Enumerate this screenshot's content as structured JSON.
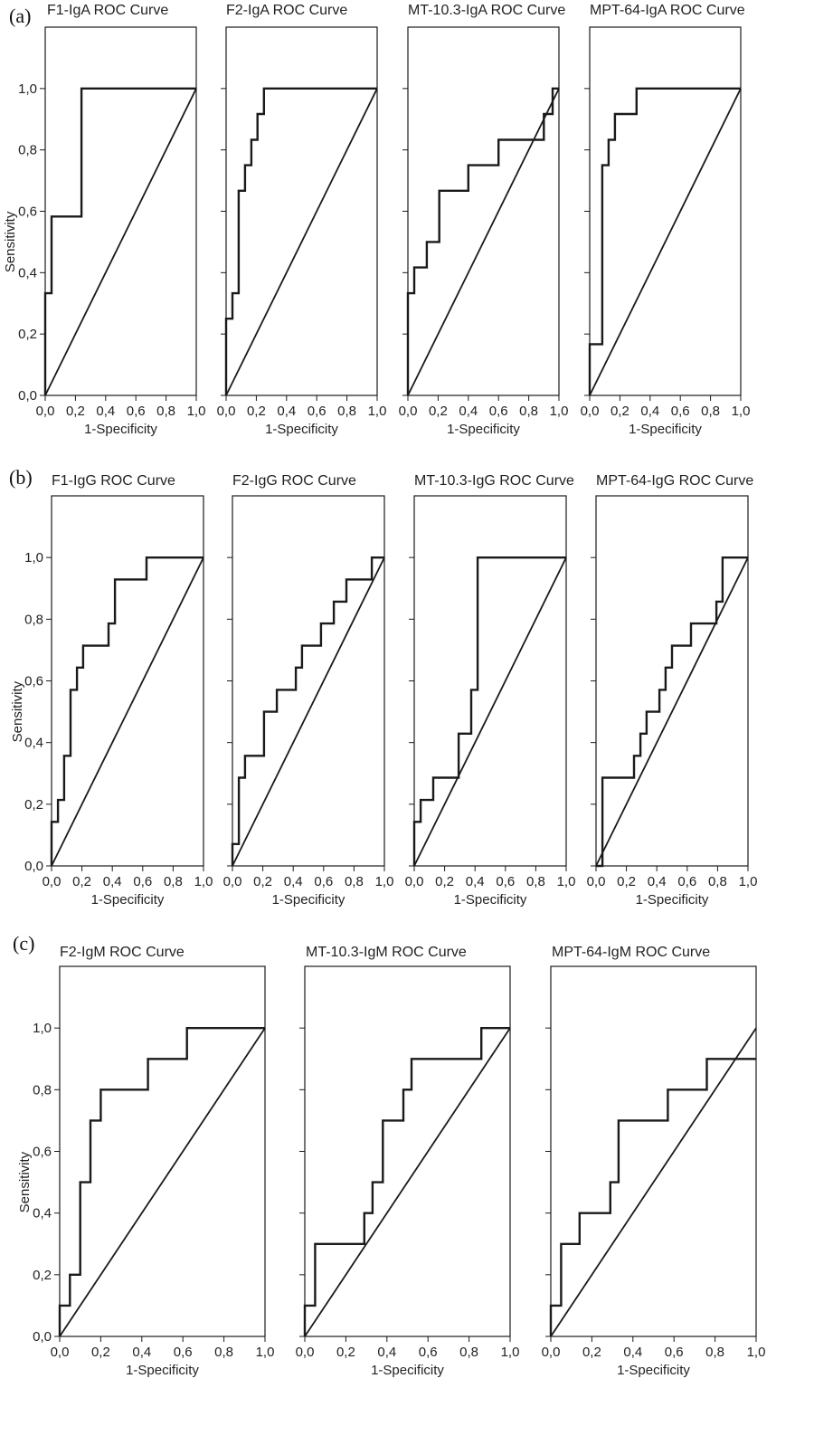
{
  "figure": {
    "panel_labels": [
      "(a)",
      "(b)",
      "(c)"
    ],
    "line_color": "#1a1a1a",
    "background": "#ffffff"
  },
  "chart_data": [
    {
      "type": "line",
      "panel": "(a)",
      "title": "F1-IgA ROC Curve",
      "xlabel": "1-Specificity",
      "ylabel": "Sensitivity",
      "xlim": [
        0,
        1
      ],
      "ylim": [
        0,
        1.2
      ],
      "xticks": [
        "0,0",
        "0,2",
        "0,4",
        "0,6",
        "0,8",
        "1,0"
      ],
      "yticks": [
        "0,0",
        "0,2",
        "0,4",
        "0,6",
        "0,8",
        "1,0"
      ],
      "series": [
        {
          "name": "ROC",
          "points": [
            [
              0,
              0
            ],
            [
              0,
              0.333
            ],
            [
              0.042,
              0.333
            ],
            [
              0.042,
              0.583
            ],
            [
              0.24,
              0.583
            ],
            [
              0.24,
              1.0
            ],
            [
              1.0,
              1.0
            ]
          ]
        },
        {
          "name": "Reference",
          "points": [
            [
              0,
              0
            ],
            [
              1,
              1
            ]
          ]
        }
      ]
    },
    {
      "type": "line",
      "panel": "(a)",
      "title": "F2-IgA ROC Curve",
      "xlabel": "1-Specificity",
      "ylabel": "",
      "xlim": [
        0,
        1
      ],
      "ylim": [
        0,
        1.2
      ],
      "xticks": [
        "0,0",
        "0,2",
        "0,4",
        "0,6",
        "0,8",
        "1,0"
      ],
      "yticks": [],
      "series": [
        {
          "name": "ROC",
          "points": [
            [
              0,
              0
            ],
            [
              0,
              0.25
            ],
            [
              0.042,
              0.25
            ],
            [
              0.042,
              0.333
            ],
            [
              0.083,
              0.333
            ],
            [
              0.083,
              0.667
            ],
            [
              0.125,
              0.667
            ],
            [
              0.125,
              0.75
            ],
            [
              0.167,
              0.75
            ],
            [
              0.167,
              0.833
            ],
            [
              0.208,
              0.833
            ],
            [
              0.208,
              0.917
            ],
            [
              0.25,
              0.917
            ],
            [
              0.25,
              1.0
            ],
            [
              1.0,
              1.0
            ]
          ]
        },
        {
          "name": "Reference",
          "points": [
            [
              0,
              0
            ],
            [
              1,
              1
            ]
          ]
        }
      ]
    },
    {
      "type": "line",
      "panel": "(a)",
      "title": "MT-10.3-IgA ROC Curve",
      "xlabel": "1-Specificity",
      "ylabel": "",
      "xlim": [
        0,
        1
      ],
      "ylim": [
        0,
        1.2
      ],
      "xticks": [
        "0,0",
        "0,2",
        "0,4",
        "0,6",
        "0,8",
        "1,0"
      ],
      "yticks": [],
      "series": [
        {
          "name": "ROC",
          "points": [
            [
              0,
              0
            ],
            [
              0,
              0.333
            ],
            [
              0.042,
              0.333
            ],
            [
              0.042,
              0.417
            ],
            [
              0.125,
              0.417
            ],
            [
              0.125,
              0.5
            ],
            [
              0.208,
              0.5
            ],
            [
              0.208,
              0.667
            ],
            [
              0.4,
              0.667
            ],
            [
              0.4,
              0.75
            ],
            [
              0.6,
              0.75
            ],
            [
              0.6,
              0.833
            ],
            [
              0.9,
              0.833
            ],
            [
              0.9,
              0.917
            ],
            [
              0.958,
              0.917
            ],
            [
              0.958,
              1.0
            ],
            [
              1.0,
              1.0
            ]
          ]
        },
        {
          "name": "Reference",
          "points": [
            [
              0,
              0
            ],
            [
              1,
              1
            ]
          ]
        }
      ]
    },
    {
      "type": "line",
      "panel": "(a)",
      "title": "MPT-64-IgA ROC Curve",
      "xlabel": "1-Specificity",
      "ylabel": "",
      "xlim": [
        0,
        1
      ],
      "ylim": [
        0,
        1.2
      ],
      "xticks": [
        "0,0",
        "0,2",
        "0,4",
        "0,6",
        "0,8",
        "1,0"
      ],
      "yticks": [],
      "series": [
        {
          "name": "ROC",
          "points": [
            [
              0,
              0
            ],
            [
              0,
              0.167
            ],
            [
              0.083,
              0.167
            ],
            [
              0.083,
              0.75
            ],
            [
              0.125,
              0.75
            ],
            [
              0.125,
              0.833
            ],
            [
              0.167,
              0.833
            ],
            [
              0.167,
              0.917
            ],
            [
              0.31,
              0.917
            ],
            [
              0.31,
              1.0
            ],
            [
              1.0,
              1.0
            ]
          ]
        },
        {
          "name": "Reference",
          "points": [
            [
              0,
              0
            ],
            [
              1,
              1
            ]
          ]
        }
      ]
    },
    {
      "type": "line",
      "panel": "(b)",
      "title": "F1-IgG ROC Curve",
      "xlabel": "1-Specificity",
      "ylabel": "Sensitivity",
      "xlim": [
        0,
        1
      ],
      "ylim": [
        0,
        1.2
      ],
      "xticks": [
        "0,0",
        "0,2",
        "0,4",
        "0,6",
        "0,8",
        "1,0"
      ],
      "yticks": [
        "0,0",
        "0,2",
        "0,4",
        "0,6",
        "0,8",
        "1,0"
      ],
      "series": [
        {
          "name": "ROC",
          "points": [
            [
              0,
              0
            ],
            [
              0,
              0.143
            ],
            [
              0.042,
              0.143
            ],
            [
              0.042,
              0.214
            ],
            [
              0.083,
              0.214
            ],
            [
              0.083,
              0.357
            ],
            [
              0.125,
              0.357
            ],
            [
              0.125,
              0.571
            ],
            [
              0.167,
              0.571
            ],
            [
              0.167,
              0.643
            ],
            [
              0.208,
              0.643
            ],
            [
              0.208,
              0.714
            ],
            [
              0.375,
              0.714
            ],
            [
              0.375,
              0.786
            ],
            [
              0.417,
              0.786
            ],
            [
              0.417,
              0.929
            ],
            [
              0.625,
              0.929
            ],
            [
              0.625,
              1.0
            ],
            [
              1.0,
              1.0
            ]
          ]
        },
        {
          "name": "Reference",
          "points": [
            [
              0,
              0
            ],
            [
              1,
              1
            ]
          ]
        }
      ]
    },
    {
      "type": "line",
      "panel": "(b)",
      "title": "F2-IgG ROC Curve",
      "xlabel": "1-Specificity",
      "ylabel": "",
      "xlim": [
        0,
        1
      ],
      "ylim": [
        0,
        1.2
      ],
      "xticks": [
        "0,0",
        "0,2",
        "0,4",
        "0,6",
        "0,8",
        "1,0"
      ],
      "yticks": [],
      "series": [
        {
          "name": "ROC",
          "points": [
            [
              0,
              0
            ],
            [
              0,
              0.071
            ],
            [
              0.042,
              0.071
            ],
            [
              0.042,
              0.286
            ],
            [
              0.083,
              0.286
            ],
            [
              0.083,
              0.357
            ],
            [
              0.208,
              0.357
            ],
            [
              0.208,
              0.5
            ],
            [
              0.292,
              0.5
            ],
            [
              0.292,
              0.571
            ],
            [
              0.417,
              0.571
            ],
            [
              0.417,
              0.643
            ],
            [
              0.458,
              0.643
            ],
            [
              0.458,
              0.714
            ],
            [
              0.583,
              0.714
            ],
            [
              0.583,
              0.786
            ],
            [
              0.667,
              0.786
            ],
            [
              0.667,
              0.857
            ],
            [
              0.75,
              0.857
            ],
            [
              0.75,
              0.929
            ],
            [
              0.917,
              0.929
            ],
            [
              0.917,
              1.0
            ],
            [
              1.0,
              1.0
            ]
          ]
        },
        {
          "name": "Reference",
          "points": [
            [
              0,
              0
            ],
            [
              1,
              1
            ]
          ]
        }
      ]
    },
    {
      "type": "line",
      "panel": "(b)",
      "title": "MT-10.3-IgG ROC Curve",
      "xlabel": "1-Specificity",
      "ylabel": "",
      "xlim": [
        0,
        1
      ],
      "ylim": [
        0,
        1.2
      ],
      "xticks": [
        "0,0",
        "0,2",
        "0,4",
        "0,6",
        "0,8",
        "1,0"
      ],
      "yticks": [],
      "series": [
        {
          "name": "ROC",
          "points": [
            [
              0,
              0
            ],
            [
              0,
              0.143
            ],
            [
              0.042,
              0.143
            ],
            [
              0.042,
              0.214
            ],
            [
              0.125,
              0.214
            ],
            [
              0.125,
              0.286
            ],
            [
              0.292,
              0.286
            ],
            [
              0.292,
              0.429
            ],
            [
              0.375,
              0.429
            ],
            [
              0.375,
              0.571
            ],
            [
              0.417,
              0.571
            ],
            [
              0.417,
              1.0
            ],
            [
              1.0,
              1.0
            ]
          ]
        },
        {
          "name": "Reference",
          "points": [
            [
              0,
              0
            ],
            [
              1,
              1
            ]
          ]
        }
      ]
    },
    {
      "type": "line",
      "panel": "(b)",
      "title": "MPT-64-IgG ROC Curve",
      "xlabel": "1-Specificity",
      "ylabel": "",
      "xlim": [
        0,
        1
      ],
      "ylim": [
        0,
        1.2
      ],
      "xticks": [
        "0,0",
        "0,2",
        "0,4",
        "0,6",
        "0,8",
        "1,0"
      ],
      "yticks": [],
      "series": [
        {
          "name": "ROC",
          "points": [
            [
              0,
              0
            ],
            [
              0.042,
              0
            ],
            [
              0.042,
              0.286
            ],
            [
              0.25,
              0.286
            ],
            [
              0.25,
              0.357
            ],
            [
              0.292,
              0.357
            ],
            [
              0.292,
              0.429
            ],
            [
              0.333,
              0.429
            ],
            [
              0.333,
              0.5
            ],
            [
              0.417,
              0.5
            ],
            [
              0.417,
              0.571
            ],
            [
              0.458,
              0.571
            ],
            [
              0.458,
              0.643
            ],
            [
              0.5,
              0.643
            ],
            [
              0.5,
              0.714
            ],
            [
              0.625,
              0.714
            ],
            [
              0.625,
              0.786
            ],
            [
              0.792,
              0.786
            ],
            [
              0.792,
              0.857
            ],
            [
              0.833,
              0.857
            ],
            [
              0.833,
              1.0
            ],
            [
              1.0,
              1.0
            ]
          ]
        },
        {
          "name": "Reference",
          "points": [
            [
              0,
              0
            ],
            [
              1,
              1
            ]
          ]
        }
      ]
    },
    {
      "type": "line",
      "panel": "(c)",
      "title": "F2-IgM ROC Curve",
      "xlabel": "1-Specificity",
      "ylabel": "Sensitivity",
      "xlim": [
        0,
        1
      ],
      "ylim": [
        0,
        1.2
      ],
      "xticks": [
        "0,0",
        "0,2",
        "0,4",
        "0,6",
        "0,8",
        "1,0"
      ],
      "yticks": [
        "0,0",
        "0,2",
        "0,4",
        "0,6",
        "0,8",
        "1,0"
      ],
      "series": [
        {
          "name": "ROC",
          "points": [
            [
              0,
              0
            ],
            [
              0,
              0.1
            ],
            [
              0.05,
              0.1
            ],
            [
              0.05,
              0.2
            ],
            [
              0.1,
              0.2
            ],
            [
              0.1,
              0.5
            ],
            [
              0.15,
              0.5
            ],
            [
              0.15,
              0.7
            ],
            [
              0.2,
              0.7
            ],
            [
              0.2,
              0.8
            ],
            [
              0.43,
              0.8
            ],
            [
              0.43,
              0.9
            ],
            [
              0.62,
              0.9
            ],
            [
              0.62,
              1.0
            ],
            [
              1.0,
              1.0
            ]
          ]
        },
        {
          "name": "Reference",
          "points": [
            [
              0,
              0
            ],
            [
              1,
              1
            ]
          ]
        }
      ]
    },
    {
      "type": "line",
      "panel": "(c)",
      "title": "MT-10.3-IgM ROC Curve",
      "xlabel": "1-Specificity",
      "ylabel": "",
      "xlim": [
        0,
        1
      ],
      "ylim": [
        0,
        1.2
      ],
      "xticks": [
        "0,0",
        "0,2",
        "0,4",
        "0,6",
        "0,8",
        "1,0"
      ],
      "yticks": [],
      "series": [
        {
          "name": "ROC",
          "points": [
            [
              0,
              0
            ],
            [
              0,
              0.1
            ],
            [
              0.05,
              0.1
            ],
            [
              0.05,
              0.3
            ],
            [
              0.29,
              0.3
            ],
            [
              0.29,
              0.4
            ],
            [
              0.33,
              0.4
            ],
            [
              0.33,
              0.5
            ],
            [
              0.38,
              0.5
            ],
            [
              0.38,
              0.7
            ],
            [
              0.48,
              0.7
            ],
            [
              0.48,
              0.8
            ],
            [
              0.52,
              0.8
            ],
            [
              0.52,
              0.9
            ],
            [
              0.86,
              0.9
            ],
            [
              0.86,
              1.0
            ],
            [
              1.0,
              1.0
            ]
          ]
        },
        {
          "name": "Reference",
          "points": [
            [
              0,
              0
            ],
            [
              1,
              1
            ]
          ]
        }
      ]
    },
    {
      "type": "line",
      "panel": "(c)",
      "title": "MPT-64-IgM ROC Curve",
      "xlabel": "1-Specificity",
      "ylabel": "",
      "xlim": [
        0,
        1
      ],
      "ylim": [
        0,
        1.2
      ],
      "xticks": [
        "0,0",
        "0,2",
        "0,4",
        "0,6",
        "0,8",
        "1,0"
      ],
      "yticks": [],
      "series": [
        {
          "name": "ROC",
          "points": [
            [
              0,
              0
            ],
            [
              0,
              0.1
            ],
            [
              0.05,
              0.1
            ],
            [
              0.05,
              0.3
            ],
            [
              0.14,
              0.3
            ],
            [
              0.14,
              0.4
            ],
            [
              0.29,
              0.4
            ],
            [
              0.29,
              0.5
            ],
            [
              0.33,
              0.5
            ],
            [
              0.33,
              0.7
            ],
            [
              0.57,
              0.7
            ],
            [
              0.57,
              0.8
            ],
            [
              0.76,
              0.8
            ],
            [
              0.76,
              0.9
            ],
            [
              1.0,
              0.9
            ]
          ]
        },
        {
          "name": "Reference",
          "points": [
            [
              0,
              0
            ],
            [
              1,
              1
            ]
          ]
        }
      ]
    }
  ]
}
